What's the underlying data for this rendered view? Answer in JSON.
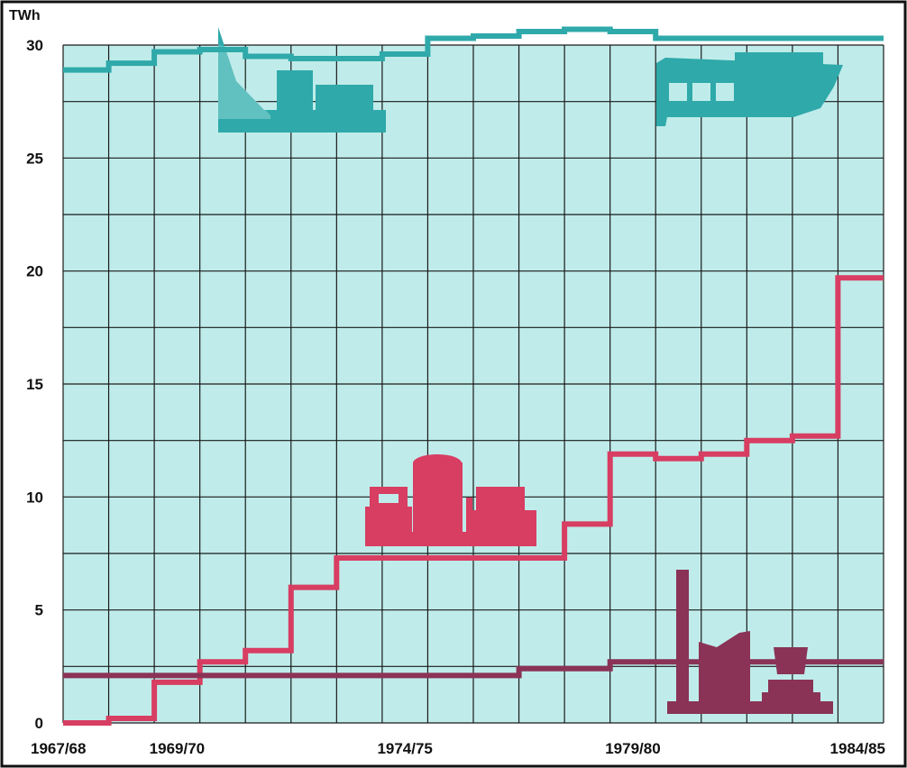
{
  "chart_data": {
    "type": "line",
    "step": true,
    "title": "",
    "ylabel": "TWh",
    "xlabel": "",
    "ylim": [
      0,
      30
    ],
    "yticks": [
      0,
      5,
      10,
      15,
      20,
      25,
      30
    ],
    "x": [
      "1967/68",
      "1968/69",
      "1969/70",
      "1970/71",
      "1971/72",
      "1972/73",
      "1973/74",
      "1974/75",
      "1975/76",
      "1976/77",
      "1977/78",
      "1978/79",
      "1979/80",
      "1980/81",
      "1981/82",
      "1982/83",
      "1983/84",
      "1984/85"
    ],
    "x_tick_labels": [
      "1967/68",
      "1969/70",
      "1974/75",
      "1979/80",
      "1984/85"
    ],
    "grid": true,
    "series": [
      {
        "icon": "hydro-power-plant-icon",
        "color": "#2fa9aa",
        "values": [
          28.9,
          29.2,
          29.7,
          29.8,
          29.5,
          29.4,
          29.4,
          29.6,
          30.3,
          30.4,
          30.6,
          30.7,
          30.6,
          30.3,
          30.3,
          30.3,
          30.3,
          30.3
        ]
      },
      {
        "icon": "nuclear-power-plant-icon",
        "color": "#d83d62",
        "values": [
          0.0,
          0.2,
          1.8,
          2.7,
          3.2,
          6.0,
          7.3,
          7.3,
          7.3,
          7.3,
          7.3,
          8.8,
          11.9,
          11.7,
          11.9,
          12.5,
          12.7,
          19.7
        ]
      },
      {
        "icon": "thermal-power-plant-icon",
        "color": "#8a3356",
        "values": [
          2.1,
          2.1,
          2.1,
          2.1,
          2.1,
          2.1,
          2.1,
          2.1,
          2.1,
          2.1,
          2.4,
          2.4,
          2.7,
          2.7,
          2.7,
          2.7,
          2.7,
          2.7
        ]
      }
    ]
  }
}
